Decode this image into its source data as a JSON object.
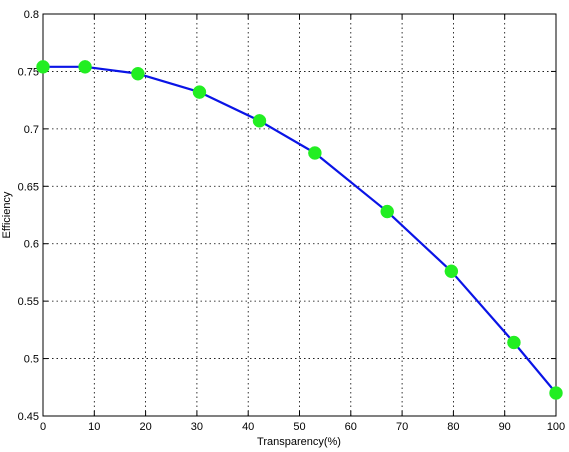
{
  "chart_data": {
    "type": "line",
    "title": "",
    "xlabel": "Transparency(%)",
    "ylabel": "Efficiency",
    "xlim": [
      0,
      100
    ],
    "ylim": [
      0.45,
      0.8
    ],
    "x_ticks": [
      0,
      10,
      20,
      30,
      40,
      50,
      60,
      70,
      80,
      90,
      100
    ],
    "x_tick_labels": [
      "0",
      "10",
      "20",
      "30",
      "40",
      "50",
      "60",
      "70",
      "80",
      "90",
      "100"
    ],
    "y_ticks": [
      0.45,
      0.5,
      0.55,
      0.6,
      0.65,
      0.7,
      0.75,
      0.8
    ],
    "y_tick_labels": [
      "0.45",
      "0.5",
      "0.55",
      "0.6",
      "0.65",
      "0.7",
      "0.75",
      "0.8"
    ],
    "grid": true,
    "legend": "none",
    "series": [
      {
        "x": [
          0,
          8.2,
          18.5,
          30.5,
          42.2,
          53,
          67.1,
          79.6,
          91.8,
          100
        ],
        "y": [
          0.754,
          0.754,
          0.748,
          0.732,
          0.707,
          0.679,
          0.628,
          0.576,
          0.514,
          0.47
        ],
        "line_color": "#0a14e6",
        "marker_color": "#22ee22"
      }
    ]
  }
}
